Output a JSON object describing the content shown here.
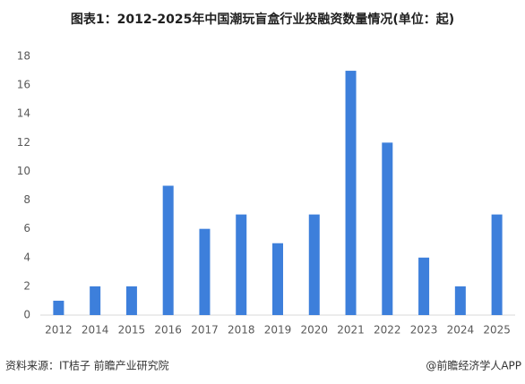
{
  "chart_data": {
    "type": "bar",
    "title": "图表1：2012-2025年中国潮玩盲盒行业投融资数量情况(单位：起)",
    "categories": [
      "2012",
      "2014",
      "2015",
      "2016",
      "2017",
      "2018",
      "2019",
      "2020",
      "2021",
      "2022",
      "2023",
      "2024",
      "2025"
    ],
    "values": [
      1,
      2,
      2,
      9,
      6,
      7,
      5,
      7,
      17,
      12,
      4,
      2,
      7
    ],
    "color": "#3d7fdb",
    "ylim": [
      0,
      18
    ],
    "yticks": [
      0,
      2,
      4,
      6,
      8,
      10,
      12,
      14,
      16,
      18
    ],
    "grid": false,
    "source": "资料来源：IT桔子 前瞻产业研究院",
    "credit": "@前瞻经济学人APP"
  }
}
